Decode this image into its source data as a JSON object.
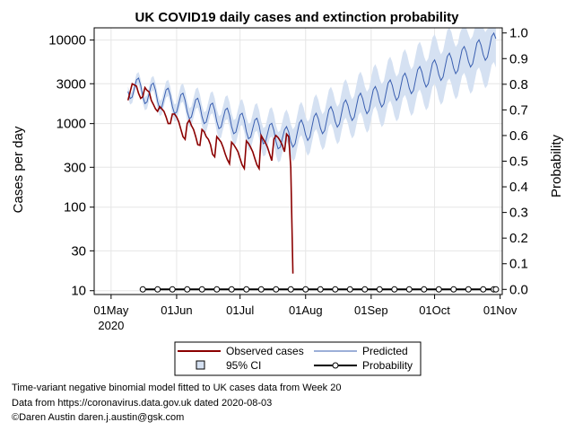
{
  "chart_data": {
    "type": "line",
    "title": "UK COVID19 daily cases and extinction probability",
    "ylabel_left": "Cases per day",
    "ylabel_right": "Probability",
    "xlabel": "",
    "y_scale_left": "log",
    "ylim_left": [
      9,
      14000
    ],
    "ylim_right": [
      -0.02,
      1.02
    ],
    "xlim_days": [
      -8,
      185
    ],
    "grid": true,
    "x_ticks": [
      {
        "day": 0,
        "label": "01May",
        "sub": "2020"
      },
      {
        "day": 31,
        "label": "01Jun"
      },
      {
        "day": 61,
        "label": "01Jul"
      },
      {
        "day": 92,
        "label": "01Aug"
      },
      {
        "day": 123,
        "label": "01Sep"
      },
      {
        "day": 153,
        "label": "01Oct"
      },
      {
        "day": 184,
        "label": "01Nov"
      }
    ],
    "y_ticks_left": [
      {
        "value": 10,
        "label": "10"
      },
      {
        "value": 30,
        "label": "30"
      },
      {
        "value": 100,
        "label": "100"
      },
      {
        "value": 300,
        "label": "300"
      },
      {
        "value": 1000,
        "label": "1000"
      },
      {
        "value": 3000,
        "label": "3000"
      },
      {
        "value": 10000,
        "label": "10000"
      }
    ],
    "y_ticks_right": [
      {
        "value": 0.0,
        "label": "0.0"
      },
      {
        "value": 0.1,
        "label": "0.1"
      },
      {
        "value": 0.2,
        "label": "0.2"
      },
      {
        "value": 0.3,
        "label": "0.3"
      },
      {
        "value": 0.4,
        "label": "0.4"
      },
      {
        "value": 0.5,
        "label": "0.5"
      },
      {
        "value": 0.6,
        "label": "0.6"
      },
      {
        "value": 0.7,
        "label": "0.7"
      },
      {
        "value": 0.8,
        "label": "0.8"
      },
      {
        "value": 0.9,
        "label": "0.9"
      },
      {
        "value": 1.0,
        "label": "1.0"
      }
    ],
    "observed": {
      "name": "Observed cases",
      "color": "#8b0000",
      "day_start": 8,
      "values": [
        1900,
        2400,
        3000,
        2900,
        2800,
        2300,
        2000,
        2100,
        2700,
        2500,
        2400,
        1900,
        1700,
        1500,
        1400,
        1600,
        1500,
        1400,
        1200,
        1000,
        1000,
        1300,
        1300,
        1200,
        1050,
        850,
        700,
        650,
        1000,
        1100,
        950,
        850,
        700,
        560,
        550,
        850,
        800,
        700,
        650,
        560,
        430,
        400,
        700,
        650,
        600,
        520,
        430,
        370,
        330,
        600,
        560,
        510,
        460,
        380,
        320,
        290,
        620,
        580,
        520,
        460,
        380,
        320,
        290,
        720,
        650,
        590,
        520,
        430,
        360,
        650,
        720,
        680,
        620,
        550,
        460,
        750,
        700,
        300,
        16
      ]
    },
    "predicted": {
      "name": "Predicted",
      "color": "#3a5fb0",
      "day_start": 8,
      "base_start": 2800,
      "base_min": 650,
      "base_end": 9000,
      "turn_day": 82,
      "weekly_amplitude": 0.33,
      "end_day": 182
    },
    "ci": {
      "name": "95% CI",
      "color": "#d5e1f2",
      "lower_factor_start": 0.85,
      "upper_factor_start": 1.15,
      "lower_factor_end": 0.45,
      "upper_factor_end": 2.2
    },
    "probability": {
      "name": "Probability",
      "color": "#000000",
      "days": [
        15,
        22,
        29,
        36,
        43,
        50,
        57,
        64,
        71,
        78,
        85,
        92,
        99,
        106,
        113,
        120,
        127,
        134,
        141,
        148,
        155,
        162,
        169,
        176,
        181,
        182
      ],
      "values": [
        0,
        0,
        0,
        0,
        0,
        0,
        0,
        0,
        0,
        0,
        0,
        0,
        0,
        0,
        0,
        0,
        0,
        0,
        0,
        0,
        0,
        0,
        0,
        0,
        0,
        0
      ]
    }
  },
  "legend": {
    "observed": "Observed cases",
    "predicted": "Predicted",
    "ci": "95% CI",
    "probability": "Probability"
  },
  "footnotes": [
    "Time-variant negative binomial model fitted to UK cases data from Week 20",
    "Data from https://coronavirus.data.gov.uk dated 2020-08-03",
    "©Daren Austin daren.j.austin@gsk.com"
  ]
}
